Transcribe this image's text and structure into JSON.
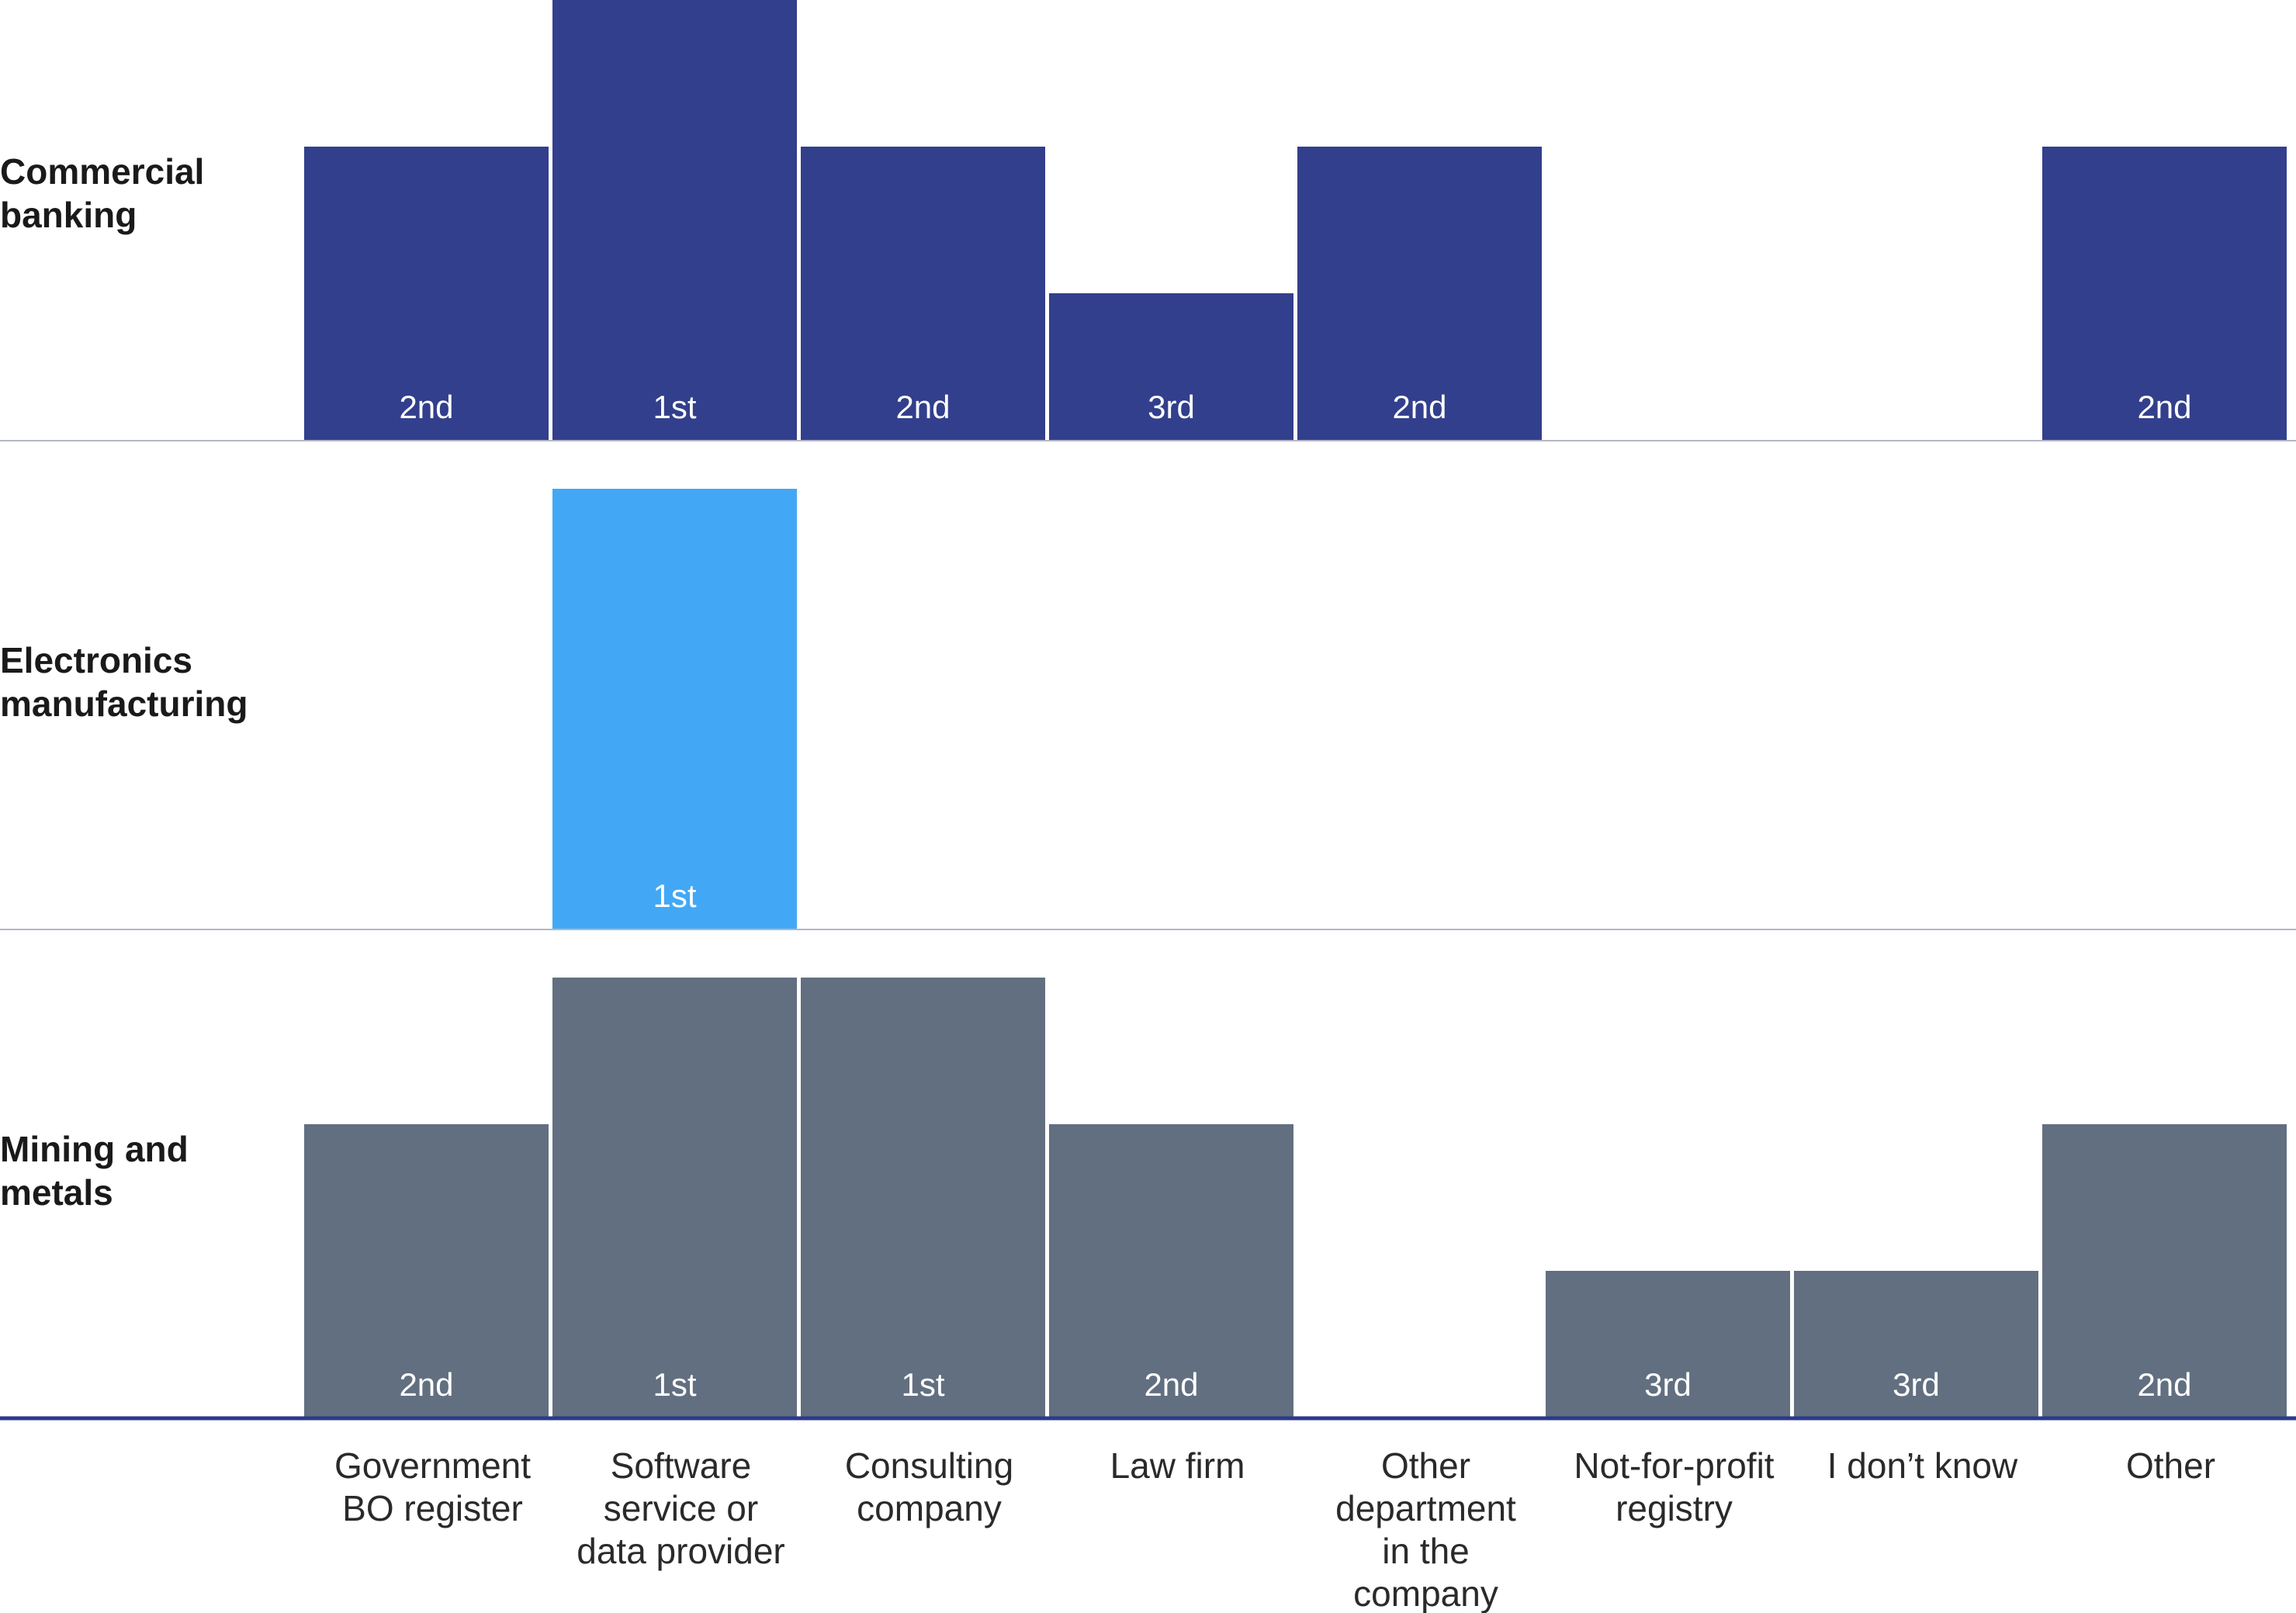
{
  "chart_data": {
    "type": "bar",
    "title": "",
    "xlabel": "",
    "ylabel": "",
    "categories": [
      [
        "Government",
        "BO register"
      ],
      [
        "Software",
        "service or",
        "data provider"
      ],
      [
        "Consulting",
        "company"
      ],
      [
        "Law firm"
      ],
      [
        "Other",
        "department",
        "in the",
        "company"
      ],
      [
        "Not-for-profit",
        "registry"
      ],
      [
        "I don’t know"
      ],
      [
        "Other"
      ]
    ],
    "rank_labels": {
      "1": "1st",
      "2": "2nd",
      "3": "3rd"
    },
    "series": [
      {
        "label_lines": [
          "Commercial",
          "banking"
        ],
        "color": "#323f8c",
        "ranks": [
          2,
          1,
          2,
          3,
          2,
          null,
          null,
          2
        ]
      },
      {
        "label_lines": [
          "Electronics",
          "manufacturing"
        ],
        "color": "#42a8f5",
        "ranks": [
          null,
          1,
          null,
          null,
          null,
          null,
          null,
          null
        ]
      },
      {
        "label_lines": [
          "Mining and",
          "metals"
        ],
        "color": "#626f80",
        "ranks": [
          2,
          1,
          1,
          2,
          null,
          3,
          3,
          2
        ]
      }
    ],
    "axis_color": "#2b3a8a",
    "separator_color": "#b4b7c8"
  }
}
